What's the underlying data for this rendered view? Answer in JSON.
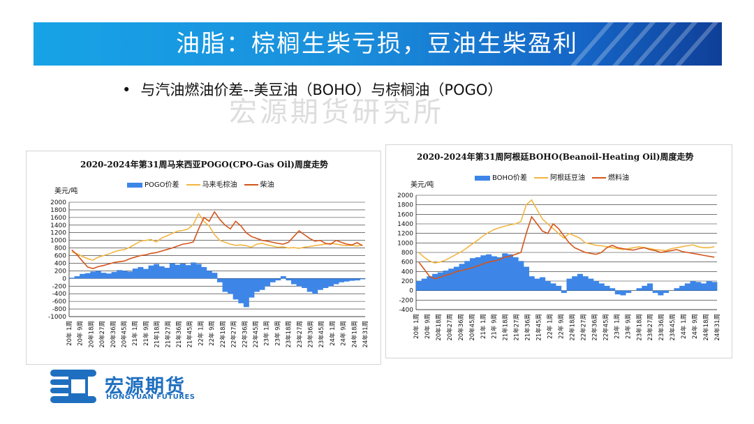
{
  "header": {
    "title": "油脂：棕榈生柴亏损，豆油生柴盈利"
  },
  "bullet": {
    "marker": "•",
    "text": "与汽油燃油价差--美豆油（BOHO）与棕榈油（POGO）"
  },
  "watermark": {
    "text": "宏源期货研究所"
  },
  "logo": {
    "cn": "宏源期货",
    "en": "HONGYUAN FUTURES",
    "icon": "hongyuan-logo-icon"
  },
  "colors": {
    "bar": "#3d86e8",
    "line1": "#f2b540",
    "line2": "#d3541a"
  },
  "chart_data": [
    {
      "type": "bar+line",
      "title": "2020-2024年第31周马来西亚POGO(CPO-Gas Oil)周度走势",
      "ylabel": "美元/吨",
      "ylim": [
        -1000,
        2000
      ],
      "yticks": [
        2000,
        1800,
        1600,
        1400,
        1200,
        1000,
        800,
        600,
        400,
        200,
        0,
        -200,
        -400,
        -600,
        -800,
        -1000
      ],
      "legend": [
        "POGO价差",
        "马来毛棕油",
        "柴油"
      ],
      "x_tick_labels": [
        "20年 1周",
        "20年 9周",
        "20年18周",
        "20年27周",
        "20年36周",
        "20年45周",
        "21年 1周",
        "21年 9周",
        "21年18周",
        "21年27周",
        "21年36周",
        "21年45周",
        "22年 1周",
        "22年 9周",
        "22年18周",
        "22年27周",
        "22年36周",
        "22年45周",
        "23年 1周",
        "23年 9周",
        "23年18周",
        "23年27周",
        "23年36周",
        "23年45周",
        "24年 1周",
        "24年 9周",
        "24年18周",
        "24年31周"
      ],
      "series": [
        {
          "name": "POGO价差",
          "kind": "bar",
          "values": [
            20,
            60,
            120,
            140,
            180,
            200,
            150,
            130,
            170,
            220,
            200,
            180,
            260,
            300,
            250,
            340,
            380,
            320,
            280,
            400,
            360,
            390,
            350,
            420,
            380,
            300,
            200,
            150,
            -100,
            -350,
            -400,
            -550,
            -650,
            -750,
            -500,
            -350,
            -300,
            -200,
            -100,
            -50,
            60,
            -50,
            -150,
            -200,
            -250,
            -350,
            -400,
            -300,
            -250,
            -200,
            -150,
            -100,
            -80,
            -60,
            -50,
            -20
          ]
        },
        {
          "name": "马来毛棕油",
          "kind": "line",
          "values": [
            700,
            650,
            580,
            520,
            480,
            560,
            600,
            640,
            700,
            740,
            760,
            820,
            900,
            980,
            1000,
            1020,
            960,
            1060,
            1120,
            1180,
            1240,
            1260,
            1300,
            1420,
            1700,
            1500,
            1380,
            1150,
            1000,
            950,
            900,
            870,
            880,
            860,
            820,
            900,
            920,
            880,
            850,
            820,
            830,
            800,
            810,
            790,
            820,
            840,
            860,
            880,
            900,
            920,
            900,
            880,
            860,
            870,
            850,
            880
          ]
        },
        {
          "name": "柴油",
          "kind": "line",
          "values": [
            750,
            620,
            460,
            300,
            260,
            310,
            340,
            380,
            420,
            440,
            460,
            520,
            560,
            600,
            620,
            660,
            680,
            720,
            760,
            800,
            850,
            900,
            920,
            960,
            1300,
            1600,
            1500,
            1750,
            1550,
            1400,
            1300,
            1500,
            1380,
            1200,
            1100,
            1050,
            1000,
            980,
            950,
            920,
            900,
            950,
            1100,
            1250,
            1150,
            1050,
            980,
            1000,
            920,
            900,
            1000,
            950,
            900,
            880,
            940,
            860
          ]
        }
      ]
    },
    {
      "type": "bar+line",
      "title": "2020-2024年第31周阿根廷BOHO(Beanoil-Heating Oil)周度走势",
      "ylabel": "美元/吨",
      "ylim": [
        -400,
        2000
      ],
      "yticks": [
        2000,
        1800,
        1600,
        1400,
        1200,
        1000,
        800,
        600,
        400,
        200,
        0,
        -200,
        -400
      ],
      "legend": [
        "BOHO价差",
        "阿根廷豆油",
        "燃料油"
      ],
      "x_tick_labels": [
        "20年 1周",
        "20年 9周",
        "20年18周",
        "20年27周",
        "20年36周",
        "20年45周",
        "21年 1周",
        "21年 9周",
        "21年18周",
        "21年27周",
        "21年36周",
        "21年45周",
        "22年 1周",
        "22年 9周",
        "22年18周",
        "22年27周",
        "22年36周",
        "22年45周",
        "23年 1周",
        "23年 9周",
        "23年18周",
        "23年27周",
        "23年36周",
        "23年45周",
        "24年 1周",
        "24年 9周",
        "24年18周",
        "24年31周"
      ],
      "series": [
        {
          "name": "BOHO价差",
          "kind": "bar",
          "values": [
            200,
            250,
            300,
            350,
            380,
            420,
            460,
            500,
            560,
            620,
            680,
            700,
            740,
            760,
            720,
            700,
            780,
            760,
            700,
            620,
            500,
            300,
            250,
            280,
            200,
            150,
            100,
            -50,
            250,
            300,
            350,
            300,
            250,
            200,
            150,
            100,
            50,
            -80,
            -100,
            -50,
            0,
            50,
            100,
            150,
            -50,
            -100,
            -50,
            0,
            50,
            100,
            150,
            200,
            180,
            150,
            200,
            180
          ]
        },
        {
          "name": "阿根廷豆油",
          "kind": "line",
          "values": [
            800,
            700,
            620,
            580,
            600,
            640,
            700,
            760,
            820,
            900,
            980,
            1060,
            1150,
            1220,
            1280,
            1320,
            1350,
            1380,
            1400,
            1450,
            1800,
            1900,
            1700,
            1500,
            1400,
            1300,
            1200,
            1100,
            1200,
            1150,
            1100,
            1000,
            980,
            950,
            940,
            920,
            900,
            880,
            860,
            880,
            900,
            920,
            900,
            880,
            860,
            850,
            840,
            880,
            900,
            920,
            940,
            960,
            920,
            900,
            900,
            920
          ]
        },
        {
          "name": "燃料油",
          "kind": "line",
          "values": [
            600,
            450,
            300,
            250,
            280,
            320,
            350,
            400,
            420,
            450,
            480,
            520,
            560,
            600,
            620,
            650,
            700,
            720,
            760,
            800,
            1200,
            1550,
            1400,
            1250,
            1200,
            1400,
            1300,
            1150,
            1000,
            900,
            850,
            800,
            780,
            760,
            800,
            900,
            950,
            900,
            880,
            860,
            850,
            880,
            900,
            860,
            840,
            800,
            820,
            840,
            860,
            820,
            800,
            780,
            760,
            740,
            720,
            700
          ]
        }
      ]
    }
  ]
}
